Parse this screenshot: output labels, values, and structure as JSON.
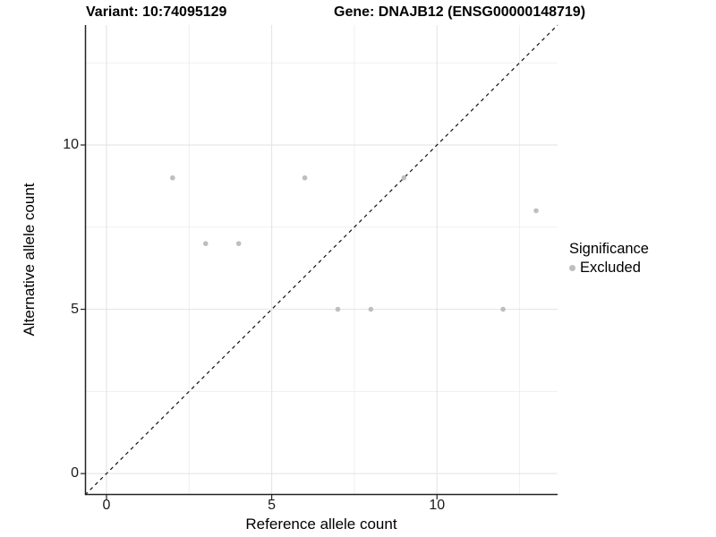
{
  "figure": {
    "title_left": "Variant: 10:74095129",
    "title_right": "Gene: DNAJB12 (ENSG00000148719)"
  },
  "chart_data": {
    "type": "scatter",
    "title": "Variant: 10:74095129   Gene: DNAJB12 (ENSG00000148719)",
    "xlabel": "Reference allele count",
    "ylabel": "Alternative allele count",
    "xlim": [
      -0.65,
      13.65
    ],
    "ylim": [
      -0.65,
      13.65
    ],
    "x_ticks": [
      0,
      5,
      10
    ],
    "y_ticks": [
      0,
      5,
      10
    ],
    "x_minor_ticks": [
      2.5,
      7.5,
      12.5
    ],
    "y_minor_ticks": [
      2.5,
      7.5,
      12.5
    ],
    "grid": true,
    "series": [
      {
        "name": "Excluded",
        "color": "#bebebe",
        "marker": "circle",
        "points": [
          {
            "x": 2,
            "y": 9
          },
          {
            "x": 3,
            "y": 7
          },
          {
            "x": 4,
            "y": 7
          },
          {
            "x": 6,
            "y": 9
          },
          {
            "x": 7,
            "y": 5
          },
          {
            "x": 8,
            "y": 5
          },
          {
            "x": 9,
            "y": 9
          },
          {
            "x": 12,
            "y": 5
          },
          {
            "x": 13,
            "y": 8
          }
        ]
      }
    ],
    "reference_line": {
      "kind": "identity y=x",
      "from": {
        "x": -0.65,
        "y": -0.65
      },
      "to": {
        "x": 13.65,
        "y": 13.65
      },
      "style": "dashed",
      "color": "#111111"
    },
    "legend": {
      "position": "right",
      "title": "Significance",
      "items": [
        {
          "label": "Excluded",
          "color": "#bebebe"
        }
      ]
    },
    "colors": {
      "background": "#ffffff",
      "grid_major": "#e2e2e2",
      "grid_minor": "#efefef",
      "axis_line": "#222222",
      "tick_text": "#1a1a1a",
      "point": "#bebebe"
    }
  }
}
